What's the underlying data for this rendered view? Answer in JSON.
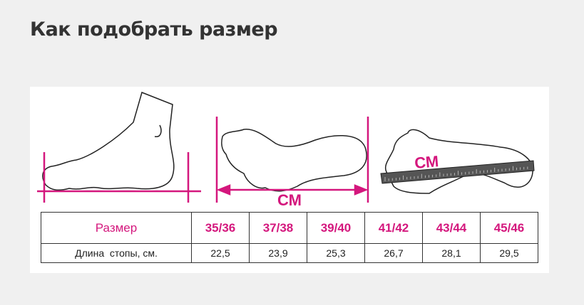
{
  "title": "Как подобрать размер",
  "illustration": {
    "unit_label_1": "СМ",
    "unit_label_2": "СМ",
    "accent": "#d4177d"
  },
  "table": {
    "header_label": "Размер",
    "sizes": [
      "35/36",
      "37/38",
      "39/40",
      "41/42",
      "43/44",
      "45/46"
    ],
    "row_label": "Длина  стопы, см.",
    "lengths": [
      "22,5",
      "23,9",
      "25,3",
      "26,7",
      "28,1",
      "29,5"
    ]
  }
}
